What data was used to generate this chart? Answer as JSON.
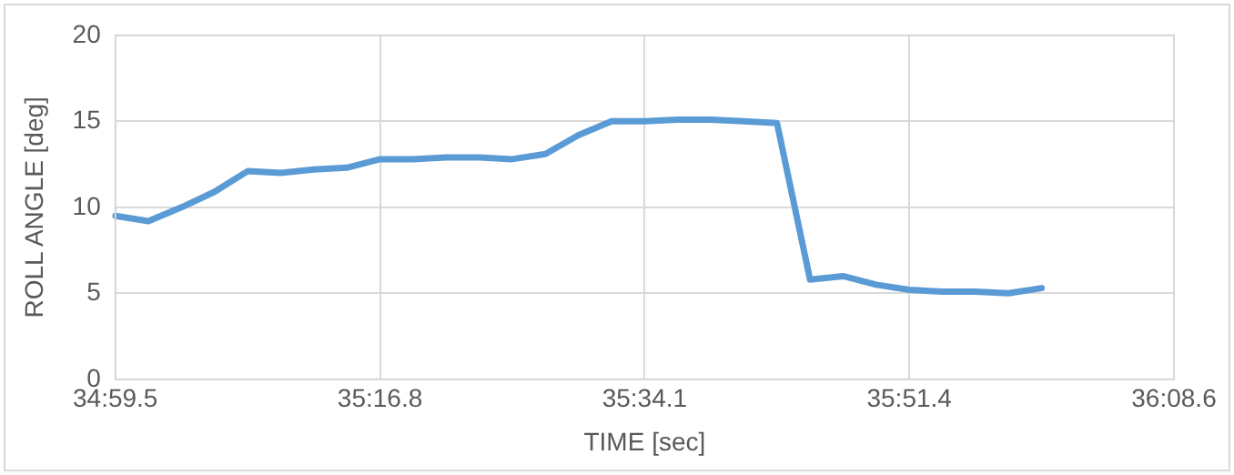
{
  "chart_data": {
    "type": "line",
    "xlabel": "TIME [sec]",
    "ylabel": "ROLL ANGLE [deg]",
    "categories": [
      "34:59.5",
      null,
      null,
      null,
      null,
      null,
      null,
      null,
      "35:16.8",
      null,
      null,
      null,
      null,
      null,
      null,
      null,
      "35:34.1",
      null,
      null,
      null,
      null,
      null,
      null,
      null,
      "35:51.4",
      null,
      null,
      null,
      null,
      null,
      null,
      null,
      "36:08.6"
    ],
    "series": [
      {
        "color": "#5b9bd5",
        "values": [
          9.5,
          9.2,
          10.0,
          10.9,
          12.1,
          12.0,
          12.2,
          12.3,
          12.8,
          12.8,
          12.9,
          12.9,
          12.8,
          13.1,
          14.2,
          15.0,
          15.0,
          15.1,
          15.1,
          15.0,
          14.9,
          5.8,
          6.0,
          5.5,
          5.2,
          5.1,
          5.1,
          5.0,
          5.3,
          null,
          null,
          null,
          null
        ]
      }
    ],
    "ylim": [
      0,
      20
    ],
    "yticks": [
      0,
      5,
      10,
      15,
      20
    ],
    "grid": true,
    "legend": false,
    "marker": "none",
    "line_style": "solid"
  }
}
